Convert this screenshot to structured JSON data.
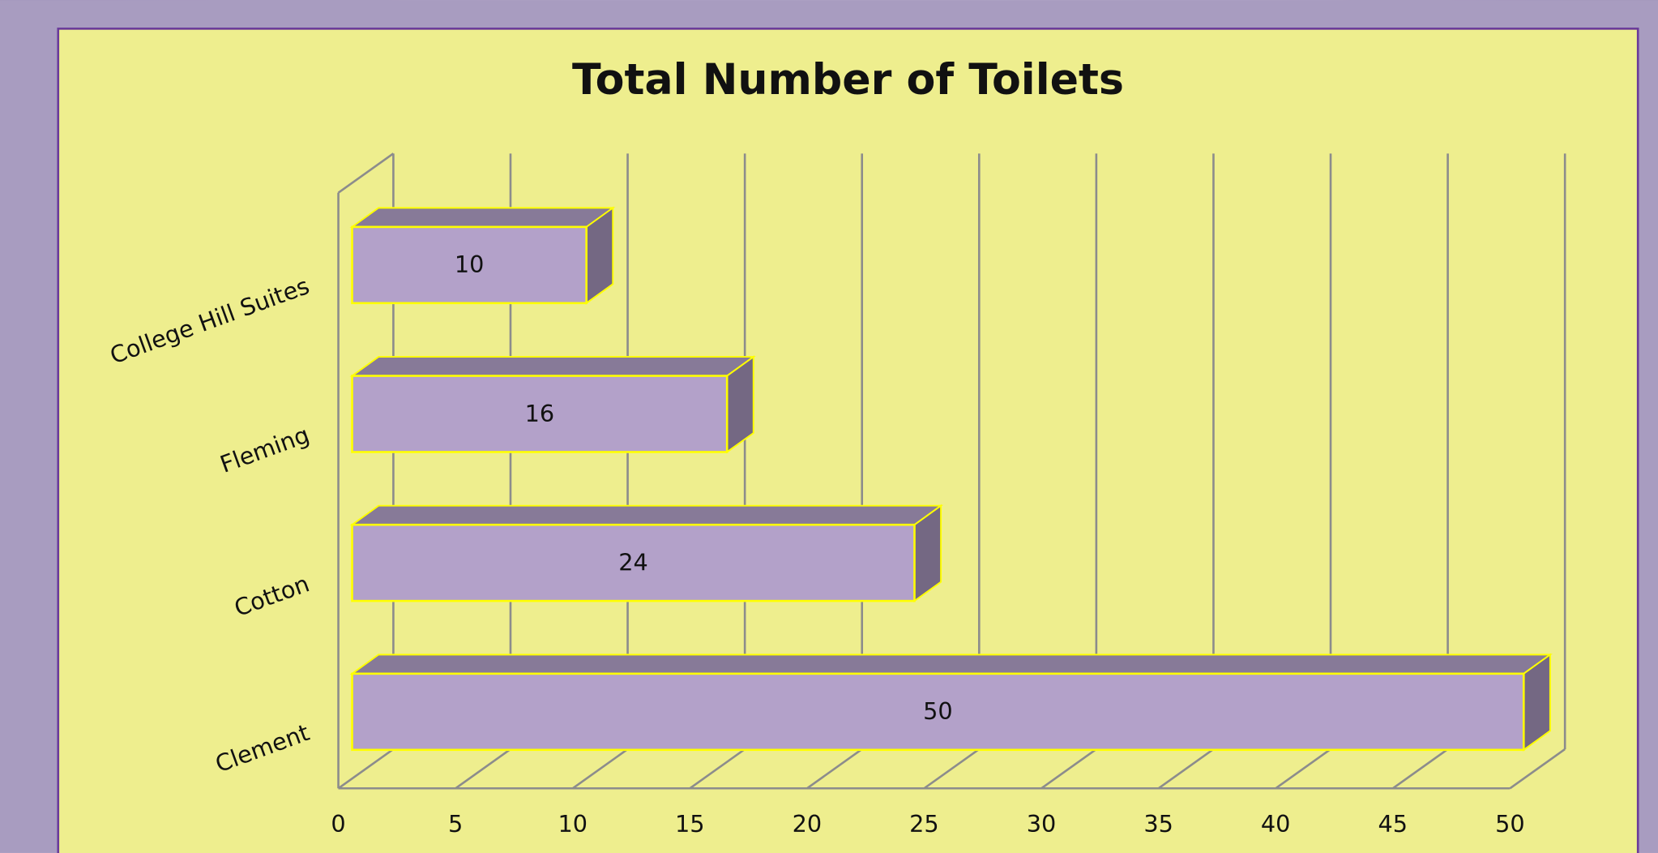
{
  "chart_data": {
    "type": "bar",
    "orientation": "horizontal",
    "title": "Total Number of Toilets",
    "categories": [
      "College Hill Suites",
      "Fleming",
      "Cotton",
      "Clement"
    ],
    "values": [
      10,
      16,
      24,
      50
    ],
    "color": "#b3a1c9",
    "xlim": [
      0,
      50
    ],
    "xticks": [
      0,
      5,
      10,
      15,
      20,
      25,
      30,
      35,
      40,
      45,
      50
    ],
    "grid": true
  }
}
